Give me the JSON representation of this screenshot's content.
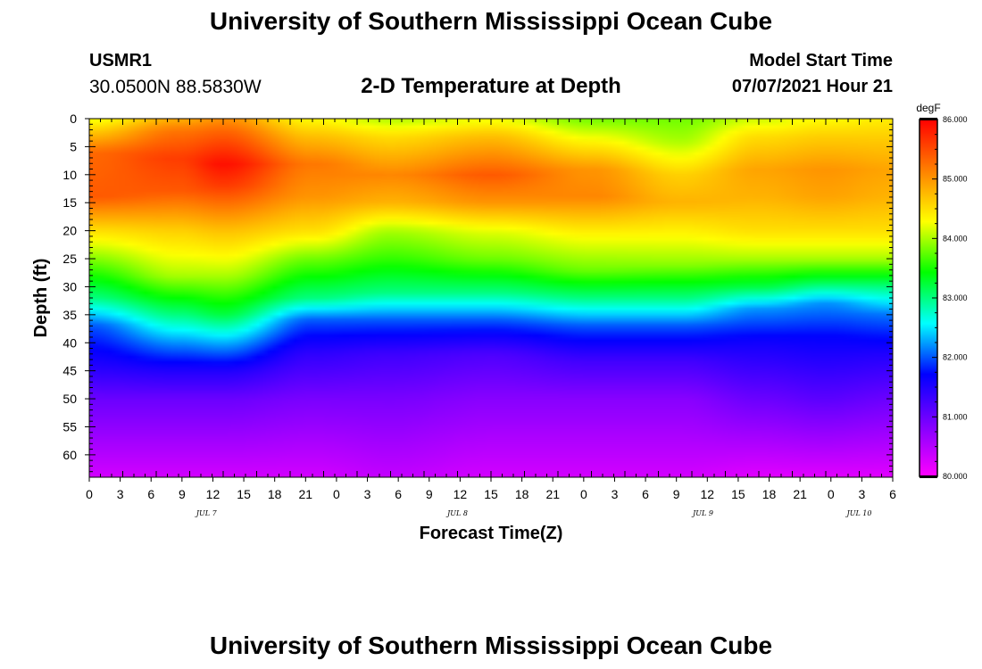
{
  "header": {
    "title": "University of Southern Mississippi Ocean Cube",
    "station_id": "USMR1",
    "coords": "30.0500N  88.5830W",
    "chart_title": "2-D Temperature at Depth",
    "start_label": "Model Start Time",
    "start_value": "07/07/2021 Hour 21"
  },
  "footer": {
    "title": "University of Southern Mississippi Ocean Cube"
  },
  "colors": {
    "scale": [
      "#ff00ff",
      "#8000ff",
      "#0000ff",
      "#00ffff",
      "#00ff00",
      "#ffff00",
      "#ff8000",
      "#ff0000"
    ]
  },
  "chart_data": {
    "type": "heatmap",
    "title": "2-D Temperature at Depth",
    "xlabel": "Forecast Time(Z)",
    "ylabel": "Depth (ft)",
    "x_hours": [
      0,
      72
    ],
    "y_range": [
      0,
      64
    ],
    "x_tick_labels": [
      "0",
      "3",
      "6",
      "9",
      "12",
      "15",
      "18",
      "21",
      "0",
      "3",
      "6",
      "9",
      "12",
      "15",
      "18",
      "21",
      "0",
      "3",
      "6",
      "9",
      "12",
      "15",
      "18",
      "21",
      "0",
      "3",
      "6"
    ],
    "y_tick_labels": [
      "0",
      "5",
      "10",
      "15",
      "20",
      "25",
      "30",
      "35",
      "40",
      "45",
      "50",
      "55",
      "60"
    ],
    "day_labels": [
      {
        "text": "JUL 7",
        "hour": 10.5
      },
      {
        "text": "JUL 8",
        "hour": 33
      },
      {
        "text": "JUL 9",
        "hour": 55
      },
      {
        "text": "JUL 10",
        "hour": 69
      }
    ],
    "colorbar": {
      "unit": "degF",
      "min": 80,
      "max": 86,
      "labels": [
        "86.000",
        "85.000",
        "84.000",
        "83.000",
        "82.000",
        "81.000",
        "80.000"
      ]
    },
    "time_keys": [
      0,
      8,
      12,
      20,
      27,
      36,
      45,
      53,
      60,
      66,
      72
    ],
    "profiles": [
      {
        "hour": 0,
        "depths": [
          0,
          2,
          6,
          14,
          20,
          24,
          32,
          37,
          44,
          50,
          64
        ],
        "temps": [
          84.2,
          84.6,
          85.3,
          85.4,
          84.5,
          84.0,
          83.0,
          82.0,
          81.5,
          81.0,
          80.3
        ]
      },
      {
        "hour": 8,
        "depths": [
          0,
          2,
          7,
          13,
          20,
          28,
          35,
          40,
          45,
          50,
          64
        ],
        "temps": [
          84.8,
          85.2,
          85.6,
          85.4,
          84.6,
          84.0,
          83.0,
          82.2,
          81.5,
          81.0,
          80.3
        ]
      },
      {
        "hour": 12,
        "depths": [
          0,
          2,
          8,
          12,
          20,
          28,
          35,
          40,
          45,
          50,
          64
        ],
        "temps": [
          85.0,
          85.3,
          85.9,
          85.6,
          84.7,
          84.0,
          83.2,
          82.3,
          81.5,
          81.0,
          80.3
        ]
      },
      {
        "hour": 20,
        "depths": [
          0,
          3,
          8,
          14,
          20,
          25,
          32,
          36,
          42,
          50,
          64
        ],
        "temps": [
          84.3,
          84.7,
          85.2,
          85.0,
          84.5,
          83.8,
          83.0,
          82.0,
          81.4,
          80.9,
          80.3
        ]
      },
      {
        "hour": 27,
        "depths": [
          0,
          3,
          10,
          15,
          20,
          25,
          31,
          36,
          42,
          50,
          64
        ],
        "temps": [
          84.0,
          84.5,
          85.1,
          84.8,
          84.0,
          83.6,
          83.0,
          82.0,
          81.3,
          80.9,
          80.4
        ]
      },
      {
        "hour": 36,
        "depths": [
          0,
          3,
          10,
          15,
          20,
          25,
          31,
          36,
          42,
          50,
          64
        ],
        "temps": [
          84.2,
          84.7,
          85.4,
          85.0,
          84.2,
          83.8,
          83.0,
          82.0,
          81.2,
          80.8,
          80.3
        ]
      },
      {
        "hour": 45,
        "depths": [
          0,
          3,
          9,
          14,
          21,
          27,
          32,
          37,
          43,
          50,
          64
        ],
        "temps": [
          83.8,
          84.2,
          85.0,
          85.1,
          84.3,
          83.8,
          83.0,
          82.0,
          81.3,
          80.8,
          80.3
        ]
      },
      {
        "hour": 53,
        "depths": [
          0,
          4,
          10,
          15,
          21,
          26,
          32,
          37,
          43,
          50,
          64
        ],
        "temps": [
          83.8,
          84.0,
          84.6,
          84.8,
          84.3,
          83.9,
          83.0,
          82.0,
          81.3,
          80.8,
          80.3
        ]
      },
      {
        "hour": 60,
        "depths": [
          0,
          3,
          9,
          14,
          20,
          25,
          30,
          34,
          40,
          50,
          64
        ],
        "temps": [
          84.1,
          84.5,
          84.9,
          84.8,
          84.5,
          84.0,
          83.2,
          82.2,
          81.6,
          81.0,
          80.2
        ]
      },
      {
        "hour": 66,
        "depths": [
          0,
          3,
          9,
          14,
          20,
          25,
          29,
          33,
          39,
          50,
          64
        ],
        "temps": [
          84.3,
          84.6,
          85.0,
          84.9,
          84.5,
          84.0,
          83.2,
          82.2,
          81.7,
          81.1,
          80.2
        ]
      },
      {
        "hour": 72,
        "depths": [
          0,
          3,
          9,
          14,
          20,
          25,
          30,
          35,
          42,
          50,
          64
        ],
        "temps": [
          84.4,
          84.6,
          84.9,
          84.8,
          84.5,
          84.0,
          83.0,
          82.1,
          81.5,
          81.0,
          80.2
        ]
      }
    ]
  }
}
